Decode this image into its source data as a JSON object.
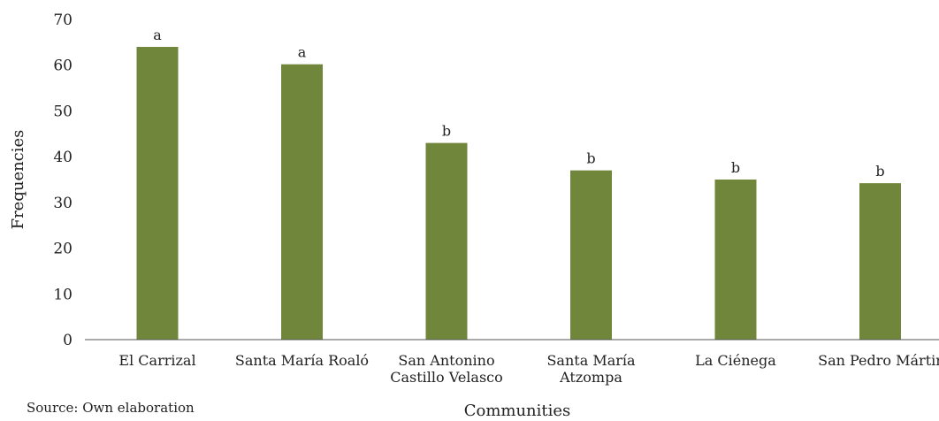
{
  "chart_data": {
    "type": "bar",
    "categories": [
      [
        "El Carrizal"
      ],
      [
        "Santa María Roaló"
      ],
      [
        "San Antonino",
        "Castillo Velasco"
      ],
      [
        "Santa María",
        "Atzompa"
      ],
      [
        "La Ciénega"
      ],
      [
        "San Pedro Mártir"
      ]
    ],
    "values": [
      64,
      60.2,
      43,
      37,
      35,
      34.2
    ],
    "annotations": [
      "a",
      "a",
      "b",
      "b",
      "b",
      "b"
    ],
    "ylim": [
      0,
      70
    ],
    "yticks": [
      0,
      10,
      20,
      30,
      40,
      50,
      60,
      70
    ],
    "ylabel": "Frequencies",
    "xlabel": "Communities",
    "bar_color": "#70863a",
    "grid": false
  },
  "source": "Source: Own elaboration"
}
